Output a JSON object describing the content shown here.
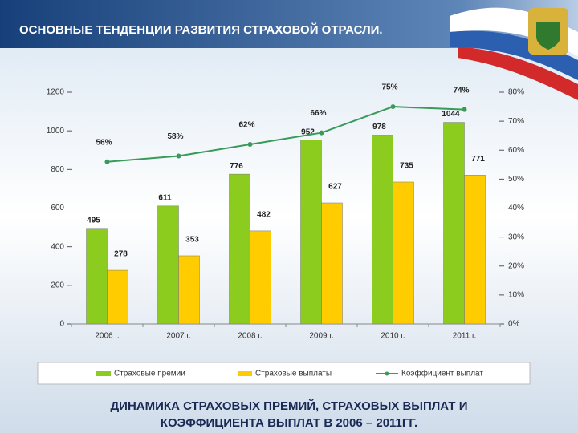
{
  "header": {
    "title": "ОСНОВНЫЕ ТЕНДЕНЦИИ РАЗВИТИЯ СТРАХОВОЙ ОТРАСЛИ."
  },
  "chart_data": {
    "type": "bar",
    "categories": [
      "2006 г.",
      "2007 г.",
      "2008 г.",
      "2009 г.",
      "2010 г.",
      "2011 г."
    ],
    "series": [
      {
        "name": "Страховые премии",
        "color": "#8ccc1e",
        "values": [
          495,
          611,
          776,
          952,
          978,
          1044
        ]
      },
      {
        "name": "Страховые выплаты",
        "color": "#ffcc00",
        "values": [
          278,
          353,
          482,
          627,
          735,
          771
        ]
      },
      {
        "name": "Коэффициент выплат",
        "color": "#3a9a5a",
        "type": "line",
        "axis": "y2",
        "values": [
          56,
          58,
          62,
          66,
          75,
          74
        ],
        "value_labels": [
          "56%",
          "58%",
          "62%",
          "66%",
          "75%",
          "74%"
        ]
      }
    ],
    "ylim": [
      0,
      1200
    ],
    "yticks": [
      0,
      200,
      400,
      600,
      800,
      1000,
      1200
    ],
    "y2lim": [
      0,
      80
    ],
    "y2ticks": [
      {
        "value": 0,
        "label": "0%"
      },
      {
        "value": 10,
        "label": "10%"
      },
      {
        "value": 20,
        "label": "20%"
      },
      {
        "value": 30,
        "label": "30%"
      },
      {
        "value": 40,
        "label": "40%"
      },
      {
        "value": 50,
        "label": "50%"
      },
      {
        "value": 60,
        "label": "60%"
      },
      {
        "value": 70,
        "label": "70%"
      },
      {
        "value": 80,
        "label": "80%"
      }
    ],
    "legend": "bottom"
  },
  "caption": [
    "ДИНАМИКА  СТРАХОВЫХ ПРЕМИЙ, СТРАХОВЫХ ВЫПЛАТ И",
    "КОЭФФИЦИЕНТА ВЫПЛАТ В 2006 – 2011ГГ."
  ]
}
